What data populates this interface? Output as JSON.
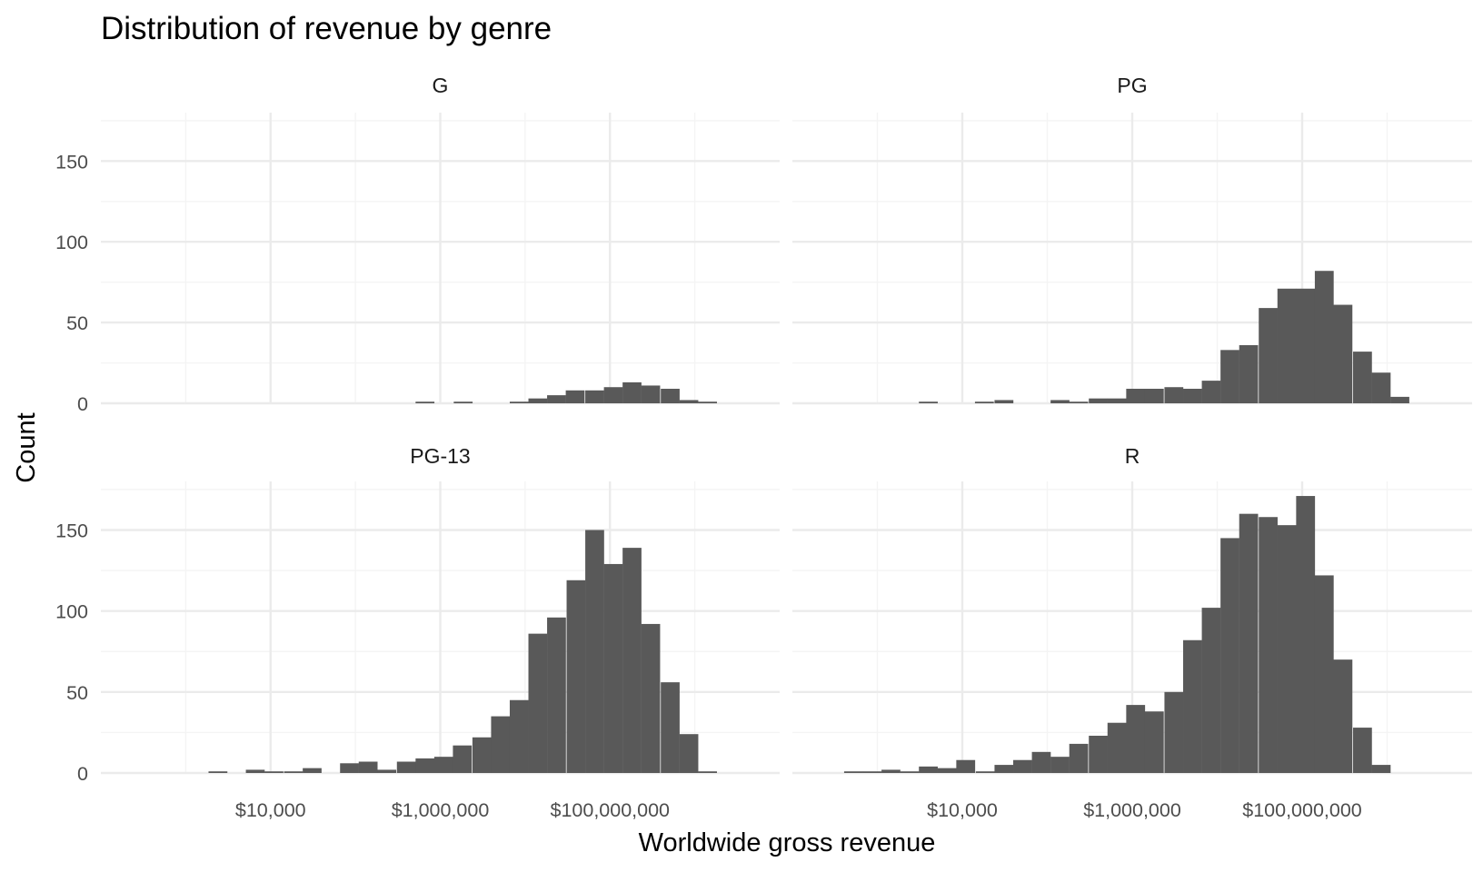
{
  "chart_data": {
    "type": "bar",
    "title": "Distribution of revenue by genre",
    "xlabel": "Worldwide gross revenue",
    "ylabel": "Count",
    "x_scale": "log10",
    "xlim": [
      100,
      10000000000
    ],
    "ylim": [
      0,
      180
    ],
    "bin_width_log10": 0.222,
    "x_ticks": [
      {
        "value": 10000,
        "label": "$10,000"
      },
      {
        "value": 1000000,
        "label": "$1,000,000"
      },
      {
        "value": 100000000,
        "label": "$100,000,000"
      }
    ],
    "y_ticks": [
      {
        "value": 0,
        "label": "0"
      },
      {
        "value": 50,
        "label": "50"
      },
      {
        "value": 100,
        "label": "100"
      },
      {
        "value": 150,
        "label": "150"
      }
    ],
    "grid": true,
    "facets": [
      {
        "name": "G",
        "bins": [
          {
            "log10_x": 5.82,
            "count": 1
          },
          {
            "log10_x": 6.27,
            "count": 1
          },
          {
            "log10_x": 6.93,
            "count": 1
          },
          {
            "log10_x": 7.15,
            "count": 3
          },
          {
            "log10_x": 7.37,
            "count": 5
          },
          {
            "log10_x": 7.59,
            "count": 8
          },
          {
            "log10_x": 7.82,
            "count": 8
          },
          {
            "log10_x": 8.04,
            "count": 10
          },
          {
            "log10_x": 8.26,
            "count": 13
          },
          {
            "log10_x": 8.48,
            "count": 11
          },
          {
            "log10_x": 8.71,
            "count": 9
          },
          {
            "log10_x": 8.93,
            "count": 2
          },
          {
            "log10_x": 9.15,
            "count": 1
          }
        ]
      },
      {
        "name": "PG",
        "bins": [
          {
            "log10_x": 3.6,
            "count": 1
          },
          {
            "log10_x": 4.26,
            "count": 1
          },
          {
            "log10_x": 4.49,
            "count": 2
          },
          {
            "log10_x": 5.15,
            "count": 2
          },
          {
            "log10_x": 5.37,
            "count": 1
          },
          {
            "log10_x": 5.6,
            "count": 3
          },
          {
            "log10_x": 5.82,
            "count": 3
          },
          {
            "log10_x": 6.04,
            "count": 9
          },
          {
            "log10_x": 6.26,
            "count": 9
          },
          {
            "log10_x": 6.49,
            "count": 10
          },
          {
            "log10_x": 6.71,
            "count": 9
          },
          {
            "log10_x": 6.93,
            "count": 14
          },
          {
            "log10_x": 7.15,
            "count": 33
          },
          {
            "log10_x": 7.37,
            "count": 36
          },
          {
            "log10_x": 7.6,
            "count": 59
          },
          {
            "log10_x": 7.82,
            "count": 71
          },
          {
            "log10_x": 8.04,
            "count": 71
          },
          {
            "log10_x": 8.26,
            "count": 82
          },
          {
            "log10_x": 8.48,
            "count": 61
          },
          {
            "log10_x": 8.71,
            "count": 32
          },
          {
            "log10_x": 8.93,
            "count": 19
          },
          {
            "log10_x": 9.15,
            "count": 4
          }
        ]
      },
      {
        "name": "PG-13",
        "bins": [
          {
            "log10_x": 3.38,
            "count": 1
          },
          {
            "log10_x": 3.82,
            "count": 2
          },
          {
            "log10_x": 4.04,
            "count": 1
          },
          {
            "log10_x": 4.27,
            "count": 1
          },
          {
            "log10_x": 4.49,
            "count": 3
          },
          {
            "log10_x": 4.93,
            "count": 6
          },
          {
            "log10_x": 5.15,
            "count": 7
          },
          {
            "log10_x": 5.37,
            "count": 2
          },
          {
            "log10_x": 5.6,
            "count": 7
          },
          {
            "log10_x": 5.82,
            "count": 9
          },
          {
            "log10_x": 6.04,
            "count": 10
          },
          {
            "log10_x": 6.26,
            "count": 17
          },
          {
            "log10_x": 6.49,
            "count": 22
          },
          {
            "log10_x": 6.71,
            "count": 35
          },
          {
            "log10_x": 6.93,
            "count": 45
          },
          {
            "log10_x": 7.15,
            "count": 86
          },
          {
            "log10_x": 7.37,
            "count": 96
          },
          {
            "log10_x": 7.6,
            "count": 119
          },
          {
            "log10_x": 7.82,
            "count": 150
          },
          {
            "log10_x": 8.04,
            "count": 129
          },
          {
            "log10_x": 8.26,
            "count": 139
          },
          {
            "log10_x": 8.48,
            "count": 92
          },
          {
            "log10_x": 8.71,
            "count": 56
          },
          {
            "log10_x": 8.93,
            "count": 24
          },
          {
            "log10_x": 9.15,
            "count": 1
          }
        ]
      },
      {
        "name": "R",
        "bins": [
          {
            "log10_x": 2.72,
            "count": 1
          },
          {
            "log10_x": 2.94,
            "count": 1
          },
          {
            "log10_x": 3.16,
            "count": 2
          },
          {
            "log10_x": 3.38,
            "count": 1
          },
          {
            "log10_x": 3.6,
            "count": 4
          },
          {
            "log10_x": 3.82,
            "count": 3
          },
          {
            "log10_x": 4.04,
            "count": 8
          },
          {
            "log10_x": 4.27,
            "count": 1
          },
          {
            "log10_x": 4.49,
            "count": 5
          },
          {
            "log10_x": 4.71,
            "count": 8
          },
          {
            "log10_x": 4.93,
            "count": 13
          },
          {
            "log10_x": 5.15,
            "count": 10
          },
          {
            "log10_x": 5.37,
            "count": 18
          },
          {
            "log10_x": 5.6,
            "count": 23
          },
          {
            "log10_x": 5.82,
            "count": 31
          },
          {
            "log10_x": 6.04,
            "count": 42
          },
          {
            "log10_x": 6.26,
            "count": 38
          },
          {
            "log10_x": 6.49,
            "count": 50
          },
          {
            "log10_x": 6.71,
            "count": 82
          },
          {
            "log10_x": 6.93,
            "count": 102
          },
          {
            "log10_x": 7.15,
            "count": 145
          },
          {
            "log10_x": 7.37,
            "count": 160
          },
          {
            "log10_x": 7.6,
            "count": 158
          },
          {
            "log10_x": 7.82,
            "count": 153
          },
          {
            "log10_x": 8.04,
            "count": 171
          },
          {
            "log10_x": 8.26,
            "count": 122
          },
          {
            "log10_x": 8.48,
            "count": 70
          },
          {
            "log10_x": 8.71,
            "count": 28
          },
          {
            "log10_x": 8.93,
            "count": 5
          }
        ]
      }
    ]
  },
  "colors": {
    "bar": "#595959",
    "grid_major": "#ebebeb",
    "grid_minor": "#f4f4f4",
    "background": "#ffffff"
  }
}
